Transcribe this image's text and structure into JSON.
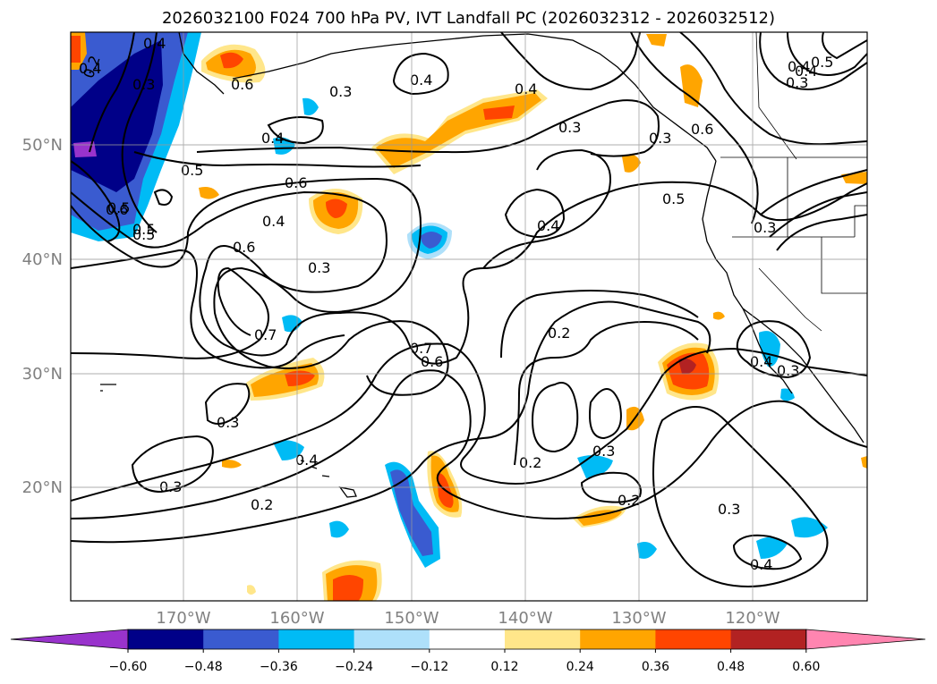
{
  "title": "2026032100 F024 700 hPa PV, IVT Landfall PC (2026032312 - 2026032512)",
  "lat_labels": [
    "50°N",
    "40°N",
    "30°N",
    "20°N"
  ],
  "lon_labels": [
    "170°W",
    "160°W",
    "150°W",
    "140°W",
    "130°W",
    "120°W"
  ],
  "colorbar": {
    "tick_labels": [
      "−0.60",
      "−0.48",
      "−0.36",
      "−0.24",
      "−0.12",
      "0.12",
      "0.24",
      "0.36",
      "0.48",
      "0.60"
    ],
    "colors": [
      "#9933cc",
      "#000088",
      "#3a5bd0",
      "#00bbf5",
      "#aee0fa",
      "#ffffff",
      "#ffe68a",
      "#ffa500",
      "#ff4500",
      "#b22222",
      "#ff85b0"
    ]
  },
  "contour_labels": [
    "0.2",
    "0.4",
    "0.3",
    "0.6",
    "0.4",
    "0.3",
    "0.4",
    "0.4",
    "0.3",
    "0.5",
    "0.4",
    "0.6",
    "0.5",
    "0.4",
    "0.6",
    "0.5",
    "0.6",
    "0.4",
    "0.3",
    "0.4",
    "0.5",
    "0.3",
    "0.6",
    "0.7",
    "0.2",
    "0.7",
    "0.6",
    "0.3",
    "0.4",
    "0.3",
    "0.3",
    "0.2",
    "0.2",
    "0.3",
    "0.2",
    "0.3",
    "0.4",
    "0.3",
    "0.4",
    "0.5",
    "0.3",
    "0.4",
    "0.5"
  ]
}
